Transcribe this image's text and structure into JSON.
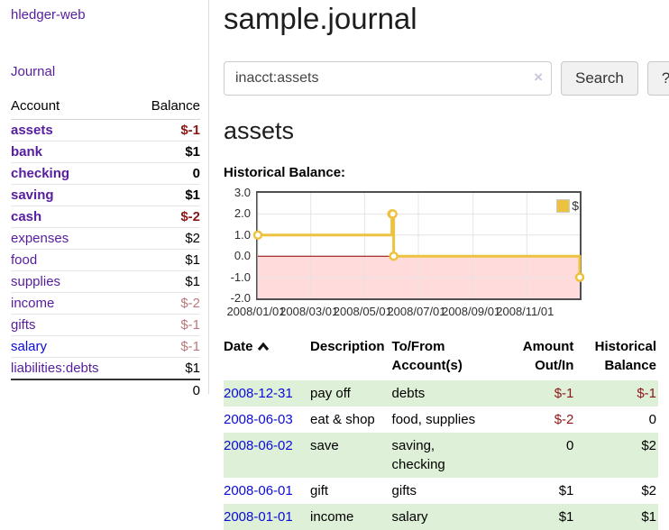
{
  "brand": "hledger-web",
  "nav": {
    "journal": "Journal"
  },
  "sidebar": {
    "header": {
      "account": "Account",
      "balance": "Balance"
    },
    "accounts": [
      {
        "name": "assets",
        "balance": "$-1"
      },
      {
        "name": "bank",
        "balance": "$1"
      },
      {
        "name": "checking",
        "balance": "0"
      },
      {
        "name": "saving",
        "balance": "$1"
      },
      {
        "name": "cash",
        "balance": "$-2"
      },
      {
        "name": "expenses",
        "balance": "$2"
      },
      {
        "name": "food",
        "balance": "$1"
      },
      {
        "name": "supplies",
        "balance": "$1"
      },
      {
        "name": "income",
        "balance": "$-2"
      },
      {
        "name": "gifts",
        "balance": "$-1"
      },
      {
        "name": "salary",
        "balance": "$-1"
      },
      {
        "name": "liabilities:debts",
        "balance": "$1"
      }
    ],
    "total": "0"
  },
  "main": {
    "title": "sample.journal",
    "search": {
      "value": "inacct:assets",
      "clear_icon": "×",
      "search_button": "Search",
      "help_button": "?"
    },
    "account_heading": "assets",
    "chart_heading": "Historical Balance:"
  },
  "chart_data": {
    "type": "line",
    "title": "Historical Balance",
    "series": [
      {
        "name": "$",
        "color": "#edc240",
        "step": true,
        "points": [
          [
            "2008-01-01",
            1
          ],
          [
            "2008-06-01",
            2
          ],
          [
            "2008-06-02",
            2
          ],
          [
            "2008-06-03",
            0
          ],
          [
            "2008-12-31",
            -1
          ]
        ]
      }
    ],
    "x_ticks": [
      "2008/01/01",
      "2008/03/01",
      "2008/05/01",
      "2008/07/01",
      "2008/09/01",
      "2008/11/01"
    ],
    "y_ticks": [
      3.0,
      2.0,
      1.0,
      0.0,
      -1.0,
      -2.0
    ],
    "xlim": [
      "2008-01-01",
      "2008-12-31"
    ],
    "ylim": [
      -2,
      3
    ],
    "grid": true,
    "negative_region_color": "#ffdbdb",
    "zero_line_color": "#8b0000",
    "legend": {
      "label": "$",
      "position": "top-right"
    }
  },
  "register": {
    "headers": {
      "date": "Date",
      "description": "Description",
      "accounts": "To/From Account(s)",
      "amount": "Amount Out/In",
      "balance": "Historical Balance"
    },
    "rows": [
      {
        "date": "2008-12-31",
        "description": "pay off",
        "accounts": "debts",
        "amount": "$-1",
        "balance": "$-1"
      },
      {
        "date": "2008-06-03",
        "description": "eat & shop",
        "accounts": "food, supplies",
        "amount": "$-2",
        "balance": "0"
      },
      {
        "date": "2008-06-02",
        "description": "save",
        "accounts": "saving, checking",
        "amount": "0",
        "balance": "$2"
      },
      {
        "date": "2008-06-01",
        "description": "gift",
        "accounts": "gifts",
        "amount": "$1",
        "balance": "$2"
      },
      {
        "date": "2008-01-01",
        "description": "income",
        "accounts": "salary",
        "amount": "$1",
        "balance": "$1"
      }
    ]
  }
}
